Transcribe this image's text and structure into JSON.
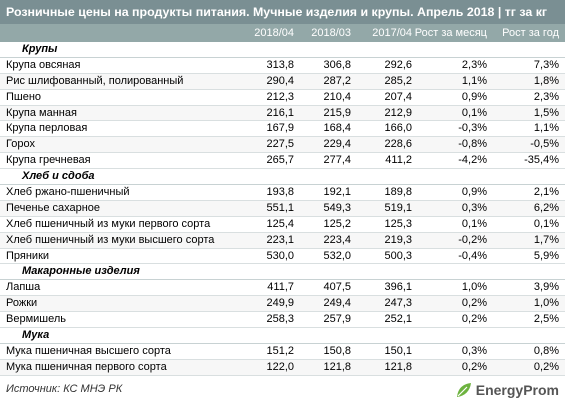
{
  "title": "Розничные цены на продукты питания. Мучные изделия и крупы. Апрель 2018 | тг за кг",
  "columns": [
    "2018/04",
    "2018/03",
    "2017/04",
    "Рост за месяц",
    "Рост за год"
  ],
  "sections": [
    {
      "name": "Крупы",
      "rows": [
        [
          "Крупа овсяная",
          "313,8",
          "306,8",
          "292,6",
          "2,3%",
          "7,3%"
        ],
        [
          "Рис шлифованный, полированный",
          "290,4",
          "287,2",
          "285,2",
          "1,1%",
          "1,8%"
        ],
        [
          "Пшено",
          "212,3",
          "210,4",
          "207,4",
          "0,9%",
          "2,3%"
        ],
        [
          "Крупа манная",
          "216,1",
          "215,9",
          "212,9",
          "0,1%",
          "1,5%"
        ],
        [
          "Крупа перловая",
          "167,9",
          "168,4",
          "166,0",
          "-0,3%",
          "1,1%"
        ],
        [
          "Горох",
          "227,5",
          "229,4",
          "228,6",
          "-0,8%",
          "-0,5%"
        ],
        [
          "Крупа гречневая",
          "265,7",
          "277,4",
          "411,2",
          "-4,2%",
          "-35,4%"
        ]
      ]
    },
    {
      "name": "Хлеб и сдоба",
      "rows": [
        [
          "Хлеб ржано-пшеничный",
          "193,8",
          "192,1",
          "189,8",
          "0,9%",
          "2,1%"
        ],
        [
          "Печенье сахарное",
          "551,1",
          "549,3",
          "519,1",
          "0,3%",
          "6,2%"
        ],
        [
          "Хлеб пшеничный из муки первого сорта",
          "125,4",
          "125,2",
          "125,3",
          "0,1%",
          "0,1%"
        ],
        [
          "Хлеб пшеничный из муки высшего сорта",
          "223,1",
          "223,4",
          "219,3",
          "-0,2%",
          "1,7%"
        ],
        [
          "Пряники",
          "530,0",
          "532,0",
          "500,3",
          "-0,4%",
          "5,9%"
        ]
      ]
    },
    {
      "name": "Макаронные изделия",
      "rows": [
        [
          "Лапша",
          "411,7",
          "407,5",
          "396,1",
          "1,0%",
          "3,9%"
        ],
        [
          "Рожки",
          "249,9",
          "249,4",
          "247,3",
          "0,2%",
          "1,0%"
        ],
        [
          "Вермишель",
          "258,3",
          "257,9",
          "252,1",
          "0,2%",
          "2,5%"
        ]
      ]
    },
    {
      "name": "Мука",
      "rows": [
        [
          "Мука пшеничная высшего сорта",
          "151,2",
          "150,8",
          "150,1",
          "0,3%",
          "0,8%"
        ],
        [
          "Мука пшеничная первого сорта",
          "122,0",
          "121,8",
          "121,8",
          "0,2%",
          "0,2%"
        ]
      ]
    }
  ],
  "source": "Источник: КС МНЭ РК",
  "logo": {
    "text": "EnergyProm",
    "icon": "energyprom-leaf-icon",
    "color": "#6db33f"
  }
}
